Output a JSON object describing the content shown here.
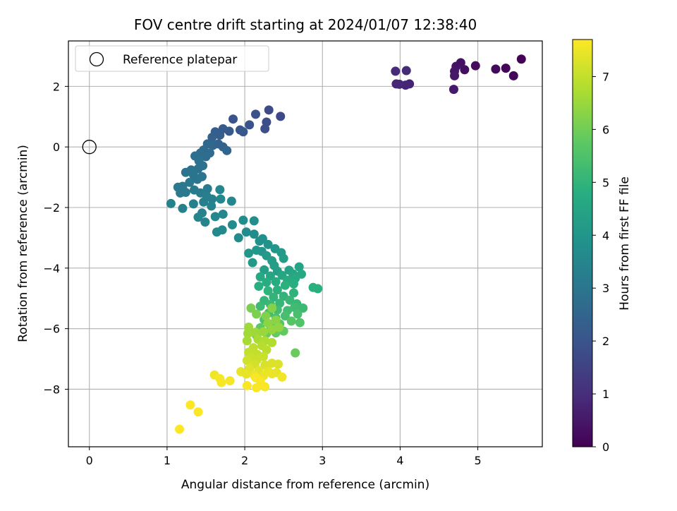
{
  "chart_data": {
    "type": "scatter",
    "title": "FOV centre drift starting at 2024/01/07 12:38:40",
    "xlabel": "Angular distance from reference (arcmin)",
    "ylabel": "Rotation from reference (arcmin)",
    "xlim": [
      -0.27,
      5.83
    ],
    "ylim": [
      -9.9,
      3.5
    ],
    "xticks": [
      0,
      1,
      2,
      3,
      4,
      5
    ],
    "yticks": [
      -8,
      -6,
      -4,
      -2,
      0,
      2
    ],
    "grid": true,
    "legend": {
      "position": "top-left",
      "entries": [
        "Reference platepar"
      ]
    },
    "reference_point": {
      "x": 0,
      "y": 0
    },
    "colorbar": {
      "label": "Hours from first FF file",
      "colormap": "viridis",
      "range": [
        0,
        7.7
      ],
      "ticks": [
        0,
        1,
        2,
        3,
        4,
        5,
        6,
        7
      ]
    },
    "points": [
      {
        "x": 5.56,
        "y": 2.9,
        "c": 0.05
      },
      {
        "x": 5.36,
        "y": 2.6,
        "c": 0.1
      },
      {
        "x": 5.46,
        "y": 2.35,
        "c": 0.15
      },
      {
        "x": 5.23,
        "y": 2.57,
        "c": 0.2
      },
      {
        "x": 4.97,
        "y": 2.68,
        "c": 0.25
      },
      {
        "x": 4.83,
        "y": 2.55,
        "c": 0.3
      },
      {
        "x": 4.78,
        "y": 2.78,
        "c": 0.35
      },
      {
        "x": 4.72,
        "y": 2.66,
        "c": 0.4
      },
      {
        "x": 4.7,
        "y": 2.5,
        "c": 0.45
      },
      {
        "x": 4.7,
        "y": 2.35,
        "c": 0.5
      },
      {
        "x": 4.69,
        "y": 1.9,
        "c": 0.55
      },
      {
        "x": 4.12,
        "y": 2.08,
        "c": 0.75
      },
      {
        "x": 4.07,
        "y": 2.04,
        "c": 0.8
      },
      {
        "x": 3.99,
        "y": 2.07,
        "c": 0.85
      },
      {
        "x": 3.95,
        "y": 2.08,
        "c": 0.85
      },
      {
        "x": 4.08,
        "y": 2.52,
        "c": 0.9
      },
      {
        "x": 3.94,
        "y": 2.5,
        "c": 0.9
      },
      {
        "x": 2.46,
        "y": 1.01,
        "c": 1.7
      },
      {
        "x": 2.31,
        "y": 1.22,
        "c": 1.75
      },
      {
        "x": 2.28,
        "y": 0.82,
        "c": 1.8
      },
      {
        "x": 2.26,
        "y": 0.6,
        "c": 1.85
      },
      {
        "x": 2.14,
        "y": 1.08,
        "c": 1.9
      },
      {
        "x": 2.06,
        "y": 0.73,
        "c": 1.95
      },
      {
        "x": 1.85,
        "y": 0.92,
        "c": 2.0
      },
      {
        "x": 1.94,
        "y": 0.56,
        "c": 2.05
      },
      {
        "x": 1.98,
        "y": 0.5,
        "c": 2.1
      },
      {
        "x": 1.8,
        "y": 0.52,
        "c": 2.15
      },
      {
        "x": 1.72,
        "y": 0.6,
        "c": 2.2
      },
      {
        "x": 1.68,
        "y": 0.39,
        "c": 2.25
      },
      {
        "x": 1.62,
        "y": 0.5,
        "c": 2.3
      },
      {
        "x": 1.58,
        "y": 0.32,
        "c": 2.35
      },
      {
        "x": 1.66,
        "y": 0.1,
        "c": 2.4
      },
      {
        "x": 1.72,
        "y": 0.0,
        "c": 2.45
      },
      {
        "x": 1.77,
        "y": -0.12,
        "c": 2.5
      },
      {
        "x": 1.59,
        "y": 0.05,
        "c": 2.55
      },
      {
        "x": 1.52,
        "y": 0.1,
        "c": 2.6
      },
      {
        "x": 1.47,
        "y": -0.1,
        "c": 2.65
      },
      {
        "x": 1.55,
        "y": -0.2,
        "c": 2.7
      },
      {
        "x": 1.5,
        "y": -0.32,
        "c": 2.75
      },
      {
        "x": 1.43,
        "y": -0.2,
        "c": 2.75
      },
      {
        "x": 1.36,
        "y": -0.3,
        "c": 2.8
      },
      {
        "x": 1.41,
        "y": -0.46,
        "c": 2.85
      },
      {
        "x": 1.46,
        "y": -0.62,
        "c": 2.85
      },
      {
        "x": 1.4,
        "y": -0.72,
        "c": 2.9
      },
      {
        "x": 1.31,
        "y": -0.76,
        "c": 2.9
      },
      {
        "x": 1.24,
        "y": -0.84,
        "c": 2.95
      },
      {
        "x": 1.34,
        "y": -0.92,
        "c": 2.95
      },
      {
        "x": 1.45,
        "y": -0.98,
        "c": 3.0
      },
      {
        "x": 1.39,
        "y": -1.07,
        "c": 3.0
      },
      {
        "x": 1.29,
        "y": -1.17,
        "c": 3.05
      },
      {
        "x": 1.2,
        "y": -1.3,
        "c": 3.05
      },
      {
        "x": 1.14,
        "y": -1.33,
        "c": 3.1
      },
      {
        "x": 1.17,
        "y": -1.52,
        "c": 3.1
      },
      {
        "x": 1.24,
        "y": -1.5,
        "c": 3.15
      },
      {
        "x": 1.35,
        "y": -1.42,
        "c": 3.15
      },
      {
        "x": 1.43,
        "y": -1.52,
        "c": 3.2
      },
      {
        "x": 1.52,
        "y": -1.38,
        "c": 3.2
      },
      {
        "x": 1.51,
        "y": -1.62,
        "c": 3.25
      },
      {
        "x": 1.58,
        "y": -1.72,
        "c": 3.3
      },
      {
        "x": 1.47,
        "y": -1.82,
        "c": 3.3
      },
      {
        "x": 1.34,
        "y": -1.88,
        "c": 3.3
      },
      {
        "x": 1.2,
        "y": -2.03,
        "c": 3.35
      },
      {
        "x": 1.05,
        "y": -1.87,
        "c": 3.35
      },
      {
        "x": 1.57,
        "y": -1.95,
        "c": 3.4
      },
      {
        "x": 1.45,
        "y": -2.18,
        "c": 3.4
      },
      {
        "x": 1.4,
        "y": -2.32,
        "c": 3.45
      },
      {
        "x": 1.49,
        "y": -2.48,
        "c": 3.45
      },
      {
        "x": 1.62,
        "y": -2.3,
        "c": 3.5
      },
      {
        "x": 1.72,
        "y": -2.22,
        "c": 3.5
      },
      {
        "x": 1.68,
        "y": -1.41,
        "c": 3.5
      },
      {
        "x": 1.69,
        "y": -1.72,
        "c": 3.55
      },
      {
        "x": 1.83,
        "y": -1.79,
        "c": 3.55
      },
      {
        "x": 1.71,
        "y": -2.74,
        "c": 3.6
      },
      {
        "x": 1.64,
        "y": -2.81,
        "c": 3.6
      },
      {
        "x": 1.84,
        "y": -2.57,
        "c": 3.65
      },
      {
        "x": 1.92,
        "y": -3.0,
        "c": 3.65
      },
      {
        "x": 1.98,
        "y": -2.42,
        "c": 3.7
      },
      {
        "x": 2.02,
        "y": -2.81,
        "c": 3.7
      },
      {
        "x": 2.12,
        "y": -2.44,
        "c": 3.75
      },
      {
        "x": 2.12,
        "y": -2.88,
        "c": 3.75
      },
      {
        "x": 2.23,
        "y": -3.03,
        "c": 3.8
      },
      {
        "x": 2.19,
        "y": -3.11,
        "c": 3.85
      },
      {
        "x": 2.3,
        "y": -3.22,
        "c": 3.9
      },
      {
        "x": 2.22,
        "y": -3.45,
        "c": 3.95
      },
      {
        "x": 2.39,
        "y": -3.36,
        "c": 4.0
      },
      {
        "x": 2.05,
        "y": -3.51,
        "c": 4.0
      },
      {
        "x": 2.15,
        "y": -3.41,
        "c": 4.05
      },
      {
        "x": 2.28,
        "y": -3.59,
        "c": 4.1
      },
      {
        "x": 2.47,
        "y": -3.49,
        "c": 4.1
      },
      {
        "x": 2.1,
        "y": -3.82,
        "c": 4.15
      },
      {
        "x": 2.35,
        "y": -3.76,
        "c": 4.2
      },
      {
        "x": 2.5,
        "y": -3.68,
        "c": 4.2
      },
      {
        "x": 2.38,
        "y": -3.92,
        "c": 4.3
      },
      {
        "x": 2.25,
        "y": -4.06,
        "c": 4.3
      },
      {
        "x": 2.42,
        "y": -4.1,
        "c": 4.35
      },
      {
        "x": 2.57,
        "y": -4.07,
        "c": 4.4
      },
      {
        "x": 2.7,
        "y": -3.96,
        "c": 4.45
      },
      {
        "x": 2.62,
        "y": -4.19,
        "c": 4.5
      },
      {
        "x": 2.48,
        "y": -4.24,
        "c": 4.5
      },
      {
        "x": 2.33,
        "y": -4.26,
        "c": 4.55
      },
      {
        "x": 2.2,
        "y": -4.29,
        "c": 4.6
      },
      {
        "x": 2.73,
        "y": -4.2,
        "c": 4.6
      },
      {
        "x": 2.65,
        "y": -4.34,
        "c": 4.65
      },
      {
        "x": 2.55,
        "y": -4.4,
        "c": 4.7
      },
      {
        "x": 2.4,
        "y": -4.45,
        "c": 4.7
      },
      {
        "x": 2.28,
        "y": -4.47,
        "c": 4.75
      },
      {
        "x": 2.18,
        "y": -4.6,
        "c": 4.8
      },
      {
        "x": 2.63,
        "y": -4.52,
        "c": 4.8
      },
      {
        "x": 2.88,
        "y": -4.64,
        "c": 4.85
      },
      {
        "x": 2.94,
        "y": -4.68,
        "c": 4.85
      },
      {
        "x": 2.52,
        "y": -4.57,
        "c": 4.9
      },
      {
        "x": 2.42,
        "y": -4.72,
        "c": 4.9
      },
      {
        "x": 2.3,
        "y": -4.75,
        "c": 4.95
      },
      {
        "x": 2.63,
        "y": -4.82,
        "c": 4.95
      },
      {
        "x": 2.5,
        "y": -4.93,
        "c": 5.0
      },
      {
        "x": 2.37,
        "y": -4.96,
        "c": 5.0
      },
      {
        "x": 2.25,
        "y": -5.07,
        "c": 5.05
      },
      {
        "x": 2.58,
        "y": -5.06,
        "c": 5.1
      },
      {
        "x": 2.45,
        "y": -5.16,
        "c": 5.1
      },
      {
        "x": 2.33,
        "y": -5.2,
        "c": 5.15
      },
      {
        "x": 2.67,
        "y": -5.18,
        "c": 5.15
      },
      {
        "x": 2.2,
        "y": -5.26,
        "c": 5.2
      },
      {
        "x": 2.75,
        "y": -5.32,
        "c": 5.2
      },
      {
        "x": 2.64,
        "y": -5.3,
        "c": 5.25
      },
      {
        "x": 2.55,
        "y": -5.4,
        "c": 5.3
      },
      {
        "x": 2.42,
        "y": -5.38,
        "c": 5.3
      },
      {
        "x": 2.31,
        "y": -5.48,
        "c": 5.35
      },
      {
        "x": 2.68,
        "y": -5.52,
        "c": 5.4
      },
      {
        "x": 2.52,
        "y": -5.58,
        "c": 5.4
      },
      {
        "x": 2.4,
        "y": -5.64,
        "c": 5.45
      },
      {
        "x": 2.25,
        "y": -5.7,
        "c": 5.5
      },
      {
        "x": 2.71,
        "y": -5.8,
        "c": 5.55
      },
      {
        "x": 2.6,
        "y": -5.75,
        "c": 5.6
      },
      {
        "x": 2.45,
        "y": -5.84,
        "c": 5.65
      },
      {
        "x": 2.33,
        "y": -5.9,
        "c": 5.7
      },
      {
        "x": 2.2,
        "y": -5.97,
        "c": 5.75
      },
      {
        "x": 2.5,
        "y": -6.08,
        "c": 5.8
      },
      {
        "x": 2.4,
        "y": -6.14,
        "c": 5.85
      },
      {
        "x": 2.65,
        "y": -6.8,
        "c": 5.9
      },
      {
        "x": 2.28,
        "y": -6.16,
        "c": 5.95
      },
      {
        "x": 2.15,
        "y": -6.22,
        "c": 6.0
      },
      {
        "x": 2.08,
        "y": -5.32,
        "c": 6.1
      },
      {
        "x": 2.15,
        "y": -5.52,
        "c": 6.15
      },
      {
        "x": 2.27,
        "y": -5.58,
        "c": 6.2
      },
      {
        "x": 2.35,
        "y": -5.32,
        "c": 6.25
      },
      {
        "x": 2.4,
        "y": -5.72,
        "c": 6.3
      },
      {
        "x": 2.3,
        "y": -5.82,
        "c": 6.35
      },
      {
        "x": 2.44,
        "y": -5.96,
        "c": 6.4
      },
      {
        "x": 2.35,
        "y": -6.03,
        "c": 6.45
      },
      {
        "x": 2.24,
        "y": -6.1,
        "c": 6.5
      },
      {
        "x": 2.14,
        "y": -6.12,
        "c": 6.55
      },
      {
        "x": 2.05,
        "y": -5.95,
        "c": 6.55
      },
      {
        "x": 2.04,
        "y": -6.16,
        "c": 6.6
      },
      {
        "x": 2.03,
        "y": -6.4,
        "c": 6.65
      },
      {
        "x": 2.17,
        "y": -6.35,
        "c": 6.7
      },
      {
        "x": 2.26,
        "y": -6.4,
        "c": 6.75
      },
      {
        "x": 2.35,
        "y": -6.46,
        "c": 6.8
      },
      {
        "x": 2.22,
        "y": -6.56,
        "c": 6.85
      },
      {
        "x": 2.28,
        "y": -6.7,
        "c": 6.9
      },
      {
        "x": 2.11,
        "y": -6.63,
        "c": 6.95
      },
      {
        "x": 2.05,
        "y": -6.78,
        "c": 7.0
      },
      {
        "x": 2.16,
        "y": -6.85,
        "c": 7.0
      },
      {
        "x": 2.24,
        "y": -6.92,
        "c": 7.05
      },
      {
        "x": 2.09,
        "y": -6.96,
        "c": 7.1
      },
      {
        "x": 2.16,
        "y": -7.02,
        "c": 7.1
      },
      {
        "x": 2.03,
        "y": -7.05,
        "c": 7.15
      },
      {
        "x": 2.13,
        "y": -7.18,
        "c": 7.2
      },
      {
        "x": 2.26,
        "y": -7.2,
        "c": 7.25
      },
      {
        "x": 2.35,
        "y": -7.14,
        "c": 7.3
      },
      {
        "x": 2.43,
        "y": -7.17,
        "c": 7.3
      },
      {
        "x": 2.06,
        "y": -7.32,
        "c": 7.35
      },
      {
        "x": 2.18,
        "y": -7.38,
        "c": 7.35
      },
      {
        "x": 2.3,
        "y": -7.4,
        "c": 7.4
      },
      {
        "x": 2.41,
        "y": -7.45,
        "c": 7.4
      },
      {
        "x": 1.95,
        "y": -7.42,
        "c": 7.45
      },
      {
        "x": 2.02,
        "y": -7.5,
        "c": 7.45
      },
      {
        "x": 2.12,
        "y": -7.53,
        "c": 7.5
      },
      {
        "x": 2.24,
        "y": -7.56,
        "c": 7.5
      },
      {
        "x": 2.35,
        "y": -7.49,
        "c": 7.5
      },
      {
        "x": 2.48,
        "y": -7.6,
        "c": 7.55
      },
      {
        "x": 1.61,
        "y": -7.53,
        "c": 7.55
      },
      {
        "x": 1.68,
        "y": -7.65,
        "c": 7.6
      },
      {
        "x": 1.7,
        "y": -7.78,
        "c": 7.6
      },
      {
        "x": 1.81,
        "y": -7.72,
        "c": 7.6
      },
      {
        "x": 2.14,
        "y": -7.62,
        "c": 7.65
      },
      {
        "x": 2.2,
        "y": -7.74,
        "c": 7.65
      },
      {
        "x": 2.03,
        "y": -7.88,
        "c": 7.65
      },
      {
        "x": 2.15,
        "y": -7.95,
        "c": 7.65
      },
      {
        "x": 2.26,
        "y": -7.92,
        "c": 7.65
      },
      {
        "x": 1.3,
        "y": -8.52,
        "c": 7.7
      },
      {
        "x": 1.4,
        "y": -8.75,
        "c": 7.7
      },
      {
        "x": 1.16,
        "y": -9.32,
        "c": 7.7
      }
    ]
  }
}
